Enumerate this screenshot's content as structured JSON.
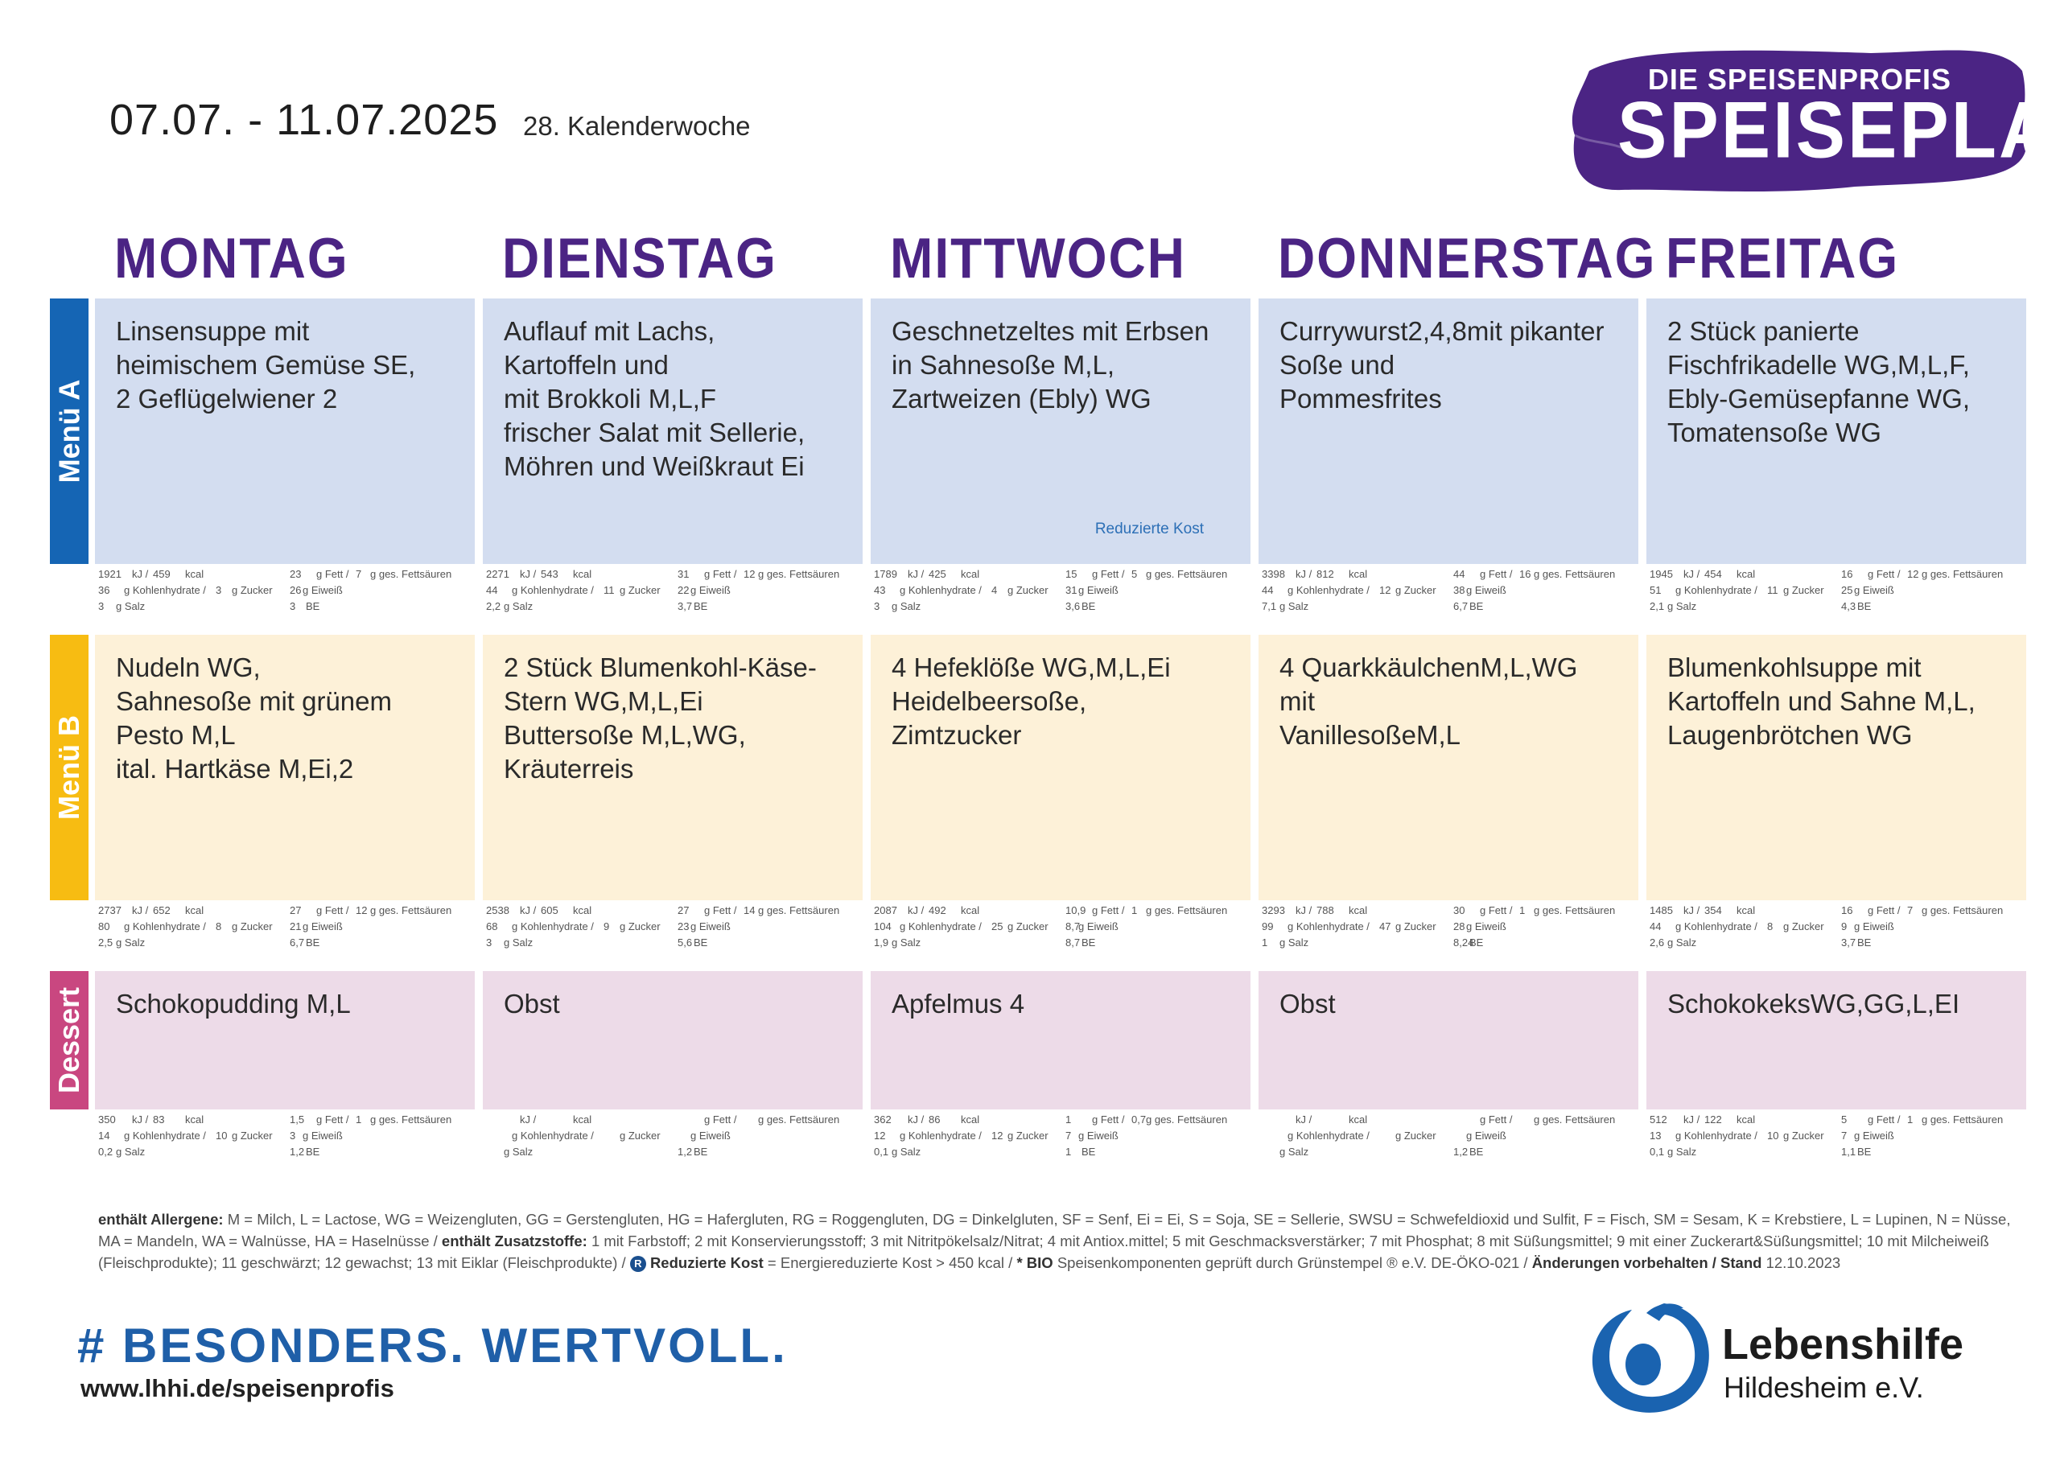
{
  "header": {
    "date_range": "07.07.  - 11.07.2025",
    "calendar_week": "28. Kalenderwoche",
    "logo_sub": "DIE SPEISENPROFIS",
    "logo_main": "SPEISEPLAN"
  },
  "days": [
    "MONTAG",
    "DIENSTAG",
    "MITTWOCH",
    "DONNERSTAG",
    "FREITAG"
  ],
  "rows": [
    {
      "label": "Menü A",
      "color": "#1565b4",
      "cell_bg": "#d3ddf0"
    },
    {
      "label": "Menü B",
      "color": "#f7bc12",
      "cell_bg": "#fdf1d8"
    },
    {
      "label": "Dessert",
      "color": "#c94780",
      "cell_bg": "#eddbe8"
    }
  ],
  "nutrition_units": {
    "kj": "kJ /",
    "kcal": "kcal",
    "fett": "g Fett /",
    "ges": "g ges. Fettsäuren",
    "kh": "g Kohlenhydrate /",
    "zucker": "g Zucker",
    "eiweiss": "g Eiweiß",
    "salz": "g Salz",
    "be": "BE"
  },
  "menu_a": [
    {
      "dish": "Linsensuppe mit\nheimischem Gemüse SE,\n2 Geflügelwiener 2",
      "n": {
        "kj": "1921",
        "kcal": "459",
        "fett": "23",
        "ges": "7",
        "kh": "36",
        "zucker": "3",
        "eiweiss": "26",
        "salz": "3",
        "be": "3"
      }
    },
    {
      "dish": "Auflauf mit Lachs,\nKartoffeln und\nmit Brokkoli M,L,F\nfrischer Salat mit Sellerie,\nMöhren und Weißkraut Ei",
      "n": {
        "kj": "2271",
        "kcal": "543",
        "fett": "31",
        "ges": "12",
        "kh": "44",
        "zucker": "11",
        "eiweiss": "22",
        "salz": "2,2",
        "be": "3,7"
      }
    },
    {
      "dish": "Geschnetzeltes mit Erbsen\nin Sahnesoße M,L,\nZartweizen (Ebly) WG",
      "badge": "Reduzierte Kost",
      "n": {
        "kj": "1789",
        "kcal": "425",
        "fett": "15",
        "ges": "5",
        "kh": "43",
        "zucker": "4",
        "eiweiss": "31",
        "salz": "3",
        "be": "3,6"
      }
    },
    {
      "dish": "Currywurst2,4,8mit pikanter\nSoße und\nPommesfrites",
      "n": {
        "kj": "3398",
        "kcal": "812",
        "fett": "44",
        "ges": "16",
        "kh": "44",
        "zucker": "12",
        "eiweiss": "38",
        "salz": "7,1",
        "be": "6,7"
      }
    },
    {
      "dish": "2 Stück panierte\nFischfrikadelle WG,M,L,F,\nEbly-Gemüsepfanne WG,\nTomatensoße WG",
      "n": {
        "kj": "1945",
        "kcal": "454",
        "fett": "16",
        "ges": "12",
        "kh": "51",
        "zucker": "11",
        "eiweiss": "25",
        "salz": "2,1",
        "be": "4,3"
      }
    }
  ],
  "menu_b": [
    {
      "dish": "Nudeln WG,\nSahnesoße mit grünem\nPesto M,L\nital. Hartkäse M,Ei,2",
      "n": {
        "kj": "2737",
        "kcal": "652",
        "fett": "27",
        "ges": "12",
        "kh": "80",
        "zucker": "8",
        "eiweiss": "21",
        "salz": "2,5",
        "be": "6,7"
      }
    },
    {
      "dish": "2 Stück Blumenkohl-Käse-\nStern WG,M,L,Ei\nButtersoße M,L,WG,\nKräuterreis",
      "n": {
        "kj": "2538",
        "kcal": "605",
        "fett": "27",
        "ges": "14",
        "kh": "68",
        "zucker": "9",
        "eiweiss": "23",
        "salz": "3",
        "be": "5,6"
      }
    },
    {
      "dish": "4 Hefeklöße WG,M,L,Ei\nHeidelbeersoße,\nZimtzucker",
      "n": {
        "kj": "2087",
        "kcal": "492",
        "fett": "10,9",
        "ges": "1",
        "kh": "104",
        "zucker": "25",
        "eiweiss": "8,7",
        "salz": "1,9",
        "be": "8,7"
      }
    },
    {
      "dish": "4 QuarkkäulchenM,L,WG\nmit\nVanillesoßeM,L",
      "n": {
        "kj": "3293",
        "kcal": "788",
        "fett": "30",
        "ges": "1",
        "kh": "99",
        "zucker": "47",
        "eiweiss": "28",
        "salz": "1",
        "be": "8,24"
      }
    },
    {
      "dish": " Blumenkohlsuppe mit\nKartoffeln und Sahne M,L,\nLaugenbrötchen WG",
      "n": {
        "kj": "1485",
        "kcal": "354",
        "fett": "16",
        "ges": "7",
        "kh": "44",
        "zucker": "8",
        "eiweiss": "9",
        "salz": "2,6",
        "be": "3,7"
      }
    }
  ],
  "dessert": [
    {
      "dish": "Schokopudding M,L",
      "n": {
        "kj": "350",
        "kcal": "83",
        "fett": "1,5",
        "ges": "1",
        "kh": "14",
        "zucker": "10",
        "eiweiss": "3",
        "salz": "0,2",
        "be": "1,2"
      }
    },
    {
      "dish": " Obst",
      "n": {
        "kj": "",
        "kcal": "",
        "fett": "",
        "ges": "",
        "kh": "",
        "zucker": "",
        "eiweiss": "",
        "salz": "",
        "be": "1,2"
      }
    },
    {
      "dish": "Apfelmus 4",
      "n": {
        "kj": "362",
        "kcal": "86",
        "fett": "1",
        "ges": "0,7",
        "kh": "12",
        "zucker": "12",
        "eiweiss": "7",
        "salz": "0,1",
        "be": "1"
      }
    },
    {
      "dish": "Obst",
      "n": {
        "kj": "",
        "kcal": "",
        "fett": "",
        "ges": "",
        "kh": "",
        "zucker": "",
        "eiweiss": "",
        "salz": "",
        "be": "1,2"
      }
    },
    {
      "dish": "SchokokeksWG,GG,L,EI",
      "n": {
        "kj": "512",
        "kcal": "122",
        "fett": "5",
        "ges": "1",
        "kh": "13",
        "zucker": "10",
        "eiweiss": "7",
        "salz": "0,1",
        "be": "1,1"
      }
    }
  ],
  "footer": {
    "allergens_title": "enthält Allergene:",
    "allergens_text": "M = Milch, L = Lactose, WG = Weizengluten, GG = Gerstengluten, HG = Hafergluten, RG = Roggengluten, DG = Dinkelgluten, SF = Senf, Ei = Ei, S = Soja, SE = Sellerie, SWSU = Schwefeldioxid und Sulfit, F = Fisch, SM = Sesam, K = Krebstiere, L = Lupinen, N = Nüsse, MA = Mandeln, WA = Walnüsse, HA =  Haselnüsse /",
    "additives_title": "enthält Zusatzstoffe:",
    "additives_text": "1 mit Farbstoff; 2 mit Konservierungsstoff; 3 mit Nitritpökelsalz/Nitrat; 4 mit Antiox.mittel; 5 mit Geschmacksverstärker; 7 mit Phosphat; 8 mit Süßungsmittel; 9 mit einer Zuckerart&Süßungsmittel; 10 mit Milcheiweiß (Fleischprodukte); 11 geschwärzt; 12 gewachst; 13 mit Eiklar (Fleischprodukte) /",
    "r_badge": "R",
    "reduced_title": "Reduzierte Kost",
    "reduced_text": "= Energiereduzierte Kost > 450 kcal /",
    "bio_title": "* BIO",
    "bio_text": "Speisenkomponenten geprüft durch Grünstempel ® e.V. DE-ÖKO-021 /",
    "changes_title": "Änderungen vorbehalten / Stand",
    "changes_date": "12.10.2023"
  },
  "bottom": {
    "hashtag": "# BESONDERS. WERTVOLL.",
    "url": "www.lhhi.de/speisenprofis",
    "org_name": "Lebenshilfe",
    "org_sub": "Hildesheim e.V."
  },
  "colors": {
    "purple": "#4b2484",
    "blue": "#1565b4",
    "logo_blue": "#1a63b0"
  }
}
